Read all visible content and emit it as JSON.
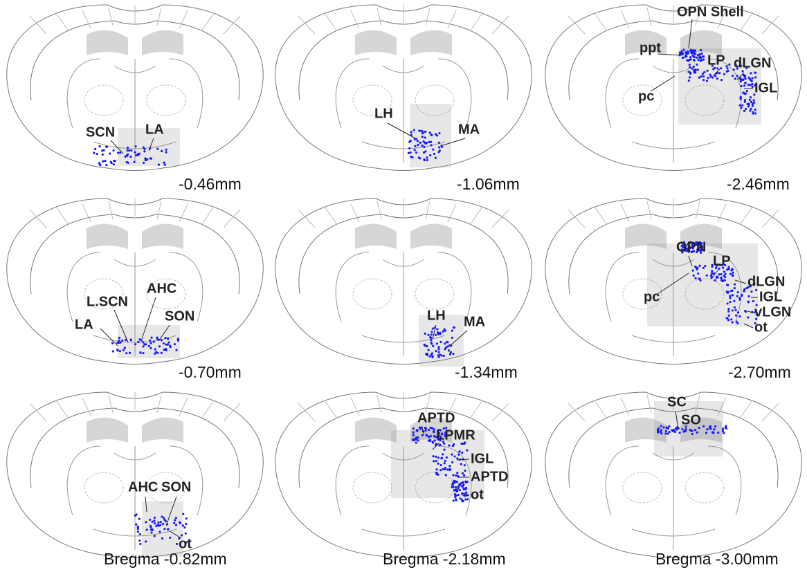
{
  "panels": [
    {
      "caption": "-0.46mm",
      "labels": [
        "SCN",
        "LA"
      ]
    },
    {
      "caption": "-1.06mm",
      "labels": [
        "LH",
        "MA"
      ]
    },
    {
      "caption": "-2.46mm",
      "labels": [
        "OPN Shell",
        "ppt",
        "LP",
        "dLGN",
        "pc",
        "IGL"
      ]
    },
    {
      "caption": "-0.70mm",
      "labels": [
        "AHC",
        "L.SCN",
        "SON",
        "LA"
      ]
    },
    {
      "caption": "-1.34mm",
      "labels": [
        "LH",
        "MA"
      ]
    },
    {
      "caption": "-2.70mm",
      "labels": [
        "OPN",
        "LP",
        "dLGN",
        "pc",
        "IGL",
        "vLGN",
        "ot"
      ]
    },
    {
      "caption": "Bregma -0.82mm",
      "labels": [
        "AHC",
        "SON",
        "ot"
      ]
    },
    {
      "caption": "Bregma -2.18mm",
      "labels": [
        "APTD",
        "LPMR",
        "IGL",
        "APTD",
        "ot"
      ]
    },
    {
      "caption": "Bregma -3.00mm",
      "labels": [
        "SC",
        "SO"
      ]
    }
  ]
}
